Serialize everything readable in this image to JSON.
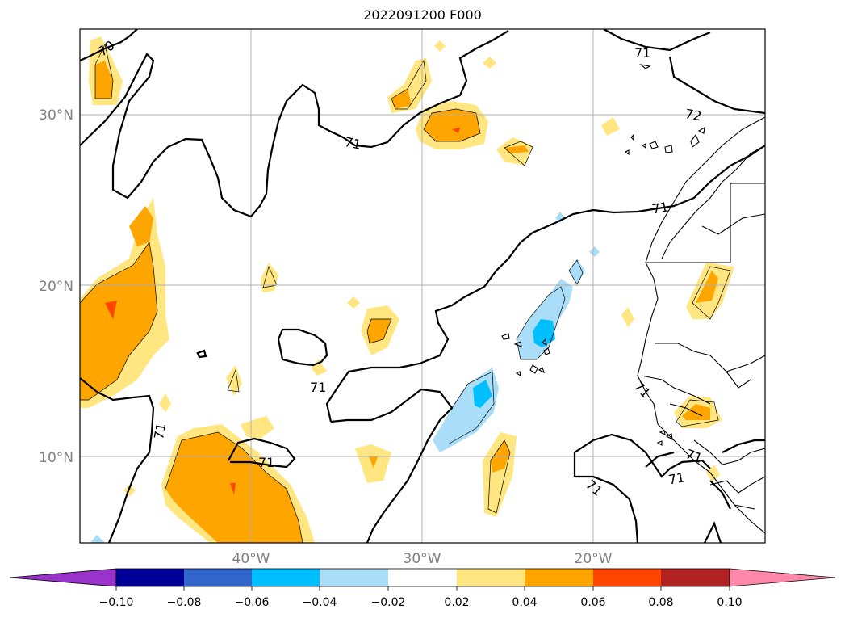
{
  "title": "2022091200 F000",
  "map": {
    "lat_labels": [
      "30°N",
      "20°N",
      "10°N"
    ],
    "lon_labels": [
      "40°W",
      "30°W",
      "20°W"
    ],
    "contour_labels": [
      "70",
      "71",
      "71",
      "71",
      "72",
      "71",
      "71",
      "71",
      "71",
      "71",
      "71",
      "71"
    ],
    "grid": true,
    "extent": {
      "lon": [
        -50,
        -10
      ],
      "lat": [
        5,
        35
      ]
    }
  },
  "colorbar": {
    "tick_labels": [
      "−0.10",
      "−0.08",
      "−0.06",
      "−0.04",
      "−0.02",
      "0.02",
      "0.04",
      "0.06",
      "0.08",
      "0.10"
    ],
    "colors": [
      "#9933cc",
      "#000099",
      "#3366cc",
      "#00bfff",
      "#aaddf7",
      "#ffffff",
      "#ffe680",
      "#ffa500",
      "#ff4500",
      "#b22222",
      "#ff88aa"
    ],
    "extend": "both"
  },
  "colors": {
    "light_yellow": "#ffe680",
    "orange": "#ffa500",
    "red_orange": "#ff4500",
    "light_blue": "#aaddf7",
    "cyan": "#00bfff"
  }
}
